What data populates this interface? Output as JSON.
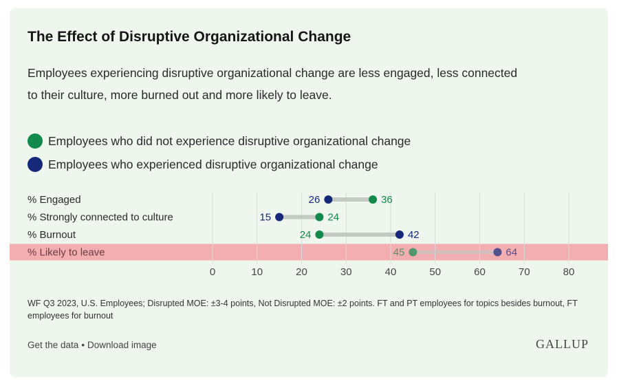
{
  "title": "The Effect of Disruptive Organizational Change",
  "subtitle": "Employees experiencing disruptive organizational change are less engaged, less connected to their culture, more burned out and more likely to leave.",
  "legend": [
    {
      "label": "Employees who did not experience disruptive organizational change",
      "color": "#118a4c"
    },
    {
      "label": "Employees who experienced disruptive organizational change",
      "color": "#15287a"
    }
  ],
  "chart_data": {
    "type": "dumbbell",
    "xlim": [
      0,
      80
    ],
    "xticks": [
      0,
      10,
      20,
      30,
      40,
      50,
      60,
      70,
      80
    ],
    "categories": [
      "% Engaged",
      "% Strongly connected to culture",
      "% Burnout",
      "% Likely to leave"
    ],
    "series": [
      {
        "name": "Employees who did not experience disruptive organizational change",
        "color": "#118a4c",
        "values": [
          36,
          24,
          24,
          45
        ]
      },
      {
        "name": "Employees who experienced disruptive organizational change",
        "color": "#15287a",
        "values": [
          26,
          15,
          42,
          64
        ]
      }
    ],
    "highlight_row": "% Likely to leave",
    "highlight_color": "#f49ca1",
    "connector_color": "#c4c9c4",
    "grid": true
  },
  "footnote": "WF Q3 2023, U.S. Employees; Disrupted MOE: ±3-4 points, Not Disrupted MOE: ±2 points. FT and PT employees for topics besides burnout, FT employees for burnout",
  "footer": {
    "get_data": "Get the data",
    "separator": "•",
    "download": "Download image",
    "brand": "GALLUP"
  }
}
